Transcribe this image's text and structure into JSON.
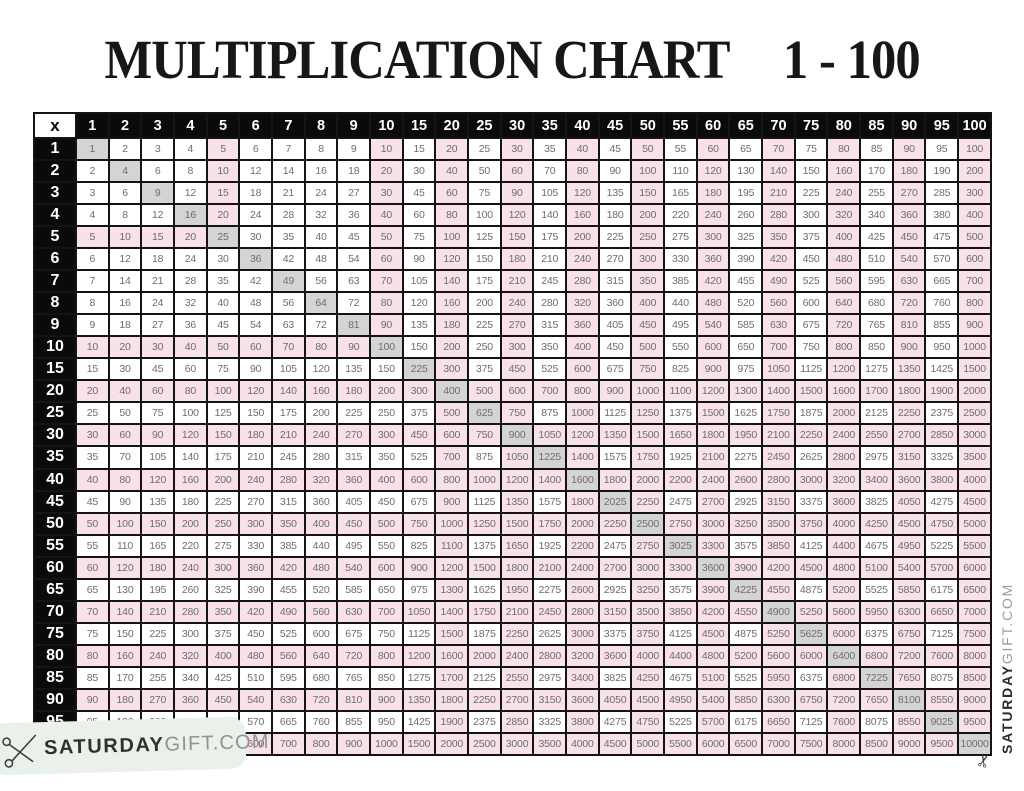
{
  "title": {
    "main": "MULTIPLICATION CHART",
    "range": "1 - 100"
  },
  "table": {
    "corner_label": "x",
    "headers": [
      1,
      2,
      3,
      4,
      5,
      6,
      7,
      8,
      9,
      10,
      15,
      20,
      25,
      30,
      35,
      40,
      45,
      50,
      55,
      60,
      65,
      70,
      75,
      80,
      85,
      90,
      95,
      100
    ],
    "rows": [
      {
        "header": 1,
        "cells": [
          1,
          2,
          3,
          4,
          5,
          6,
          7,
          8,
          9,
          10,
          15,
          20,
          25,
          30,
          35,
          40,
          45,
          50,
          55,
          60,
          65,
          70,
          75,
          80,
          85,
          90,
          95,
          100
        ]
      },
      {
        "header": 2,
        "cells": [
          2,
          4,
          6,
          8,
          10,
          12,
          14,
          16,
          18,
          20,
          30,
          40,
          50,
          60,
          70,
          80,
          90,
          100,
          110,
          120,
          130,
          140,
          150,
          160,
          170,
          180,
          190,
          200
        ]
      },
      {
        "header": 3,
        "cells": [
          3,
          6,
          9,
          12,
          15,
          18,
          21,
          24,
          27,
          30,
          45,
          60,
          75,
          90,
          105,
          120,
          135,
          150,
          165,
          180,
          195,
          210,
          225,
          240,
          255,
          270,
          285,
          300
        ]
      },
      {
        "header": 4,
        "cells": [
          4,
          8,
          12,
          16,
          20,
          24,
          28,
          32,
          36,
          40,
          60,
          80,
          100,
          120,
          140,
          160,
          180,
          200,
          220,
          240,
          260,
          280,
          300,
          320,
          340,
          360,
          380,
          400
        ]
      },
      {
        "header": 5,
        "cells": [
          5,
          10,
          15,
          20,
          25,
          30,
          35,
          40,
          45,
          50,
          75,
          100,
          125,
          150,
          175,
          200,
          225,
          250,
          275,
          300,
          325,
          350,
          375,
          400,
          425,
          450,
          475,
          500
        ]
      },
      {
        "header": 6,
        "cells": [
          6,
          12,
          18,
          24,
          30,
          36,
          42,
          48,
          54,
          60,
          90,
          120,
          150,
          180,
          210,
          240,
          270,
          300,
          330,
          360,
          390,
          420,
          450,
          480,
          510,
          540,
          570,
          600
        ]
      },
      {
        "header": 7,
        "cells": [
          7,
          14,
          21,
          28,
          35,
          42,
          49,
          56,
          63,
          70,
          105,
          140,
          175,
          210,
          245,
          280,
          315,
          350,
          385,
          420,
          455,
          490,
          525,
          560,
          595,
          630,
          665,
          700
        ]
      },
      {
        "header": 8,
        "cells": [
          8,
          16,
          24,
          32,
          40,
          48,
          56,
          64,
          72,
          80,
          120,
          160,
          200,
          240,
          280,
          320,
          360,
          400,
          440,
          480,
          520,
          560,
          600,
          640,
          680,
          720,
          760,
          800
        ]
      },
      {
        "header": 9,
        "cells": [
          9,
          18,
          27,
          36,
          45,
          54,
          63,
          72,
          81,
          90,
          135,
          180,
          225,
          270,
          315,
          360,
          405,
          450,
          495,
          540,
          585,
          630,
          675,
          720,
          765,
          810,
          855,
          900
        ]
      },
      {
        "header": 10,
        "cells": [
          10,
          20,
          30,
          40,
          50,
          60,
          70,
          80,
          90,
          100,
          150,
          200,
          250,
          300,
          350,
          400,
          450,
          500,
          550,
          600,
          650,
          700,
          750,
          800,
          850,
          900,
          950,
          1000
        ]
      },
      {
        "header": 15,
        "cells": [
          15,
          30,
          45,
          60,
          75,
          90,
          105,
          120,
          135,
          150,
          225,
          300,
          375,
          450,
          525,
          600,
          675,
          750,
          825,
          900,
          975,
          1050,
          1125,
          1200,
          1275,
          1350,
          1425,
          1500
        ]
      },
      {
        "header": 20,
        "cells": [
          20,
          40,
          60,
          80,
          100,
          120,
          140,
          160,
          180,
          200,
          300,
          400,
          500,
          600,
          700,
          800,
          900,
          1000,
          1100,
          1200,
          1300,
          1400,
          1500,
          1600,
          1700,
          1800,
          1900,
          2000
        ]
      },
      {
        "header": 25,
        "cells": [
          25,
          50,
          75,
          100,
          125,
          150,
          175,
          200,
          225,
          250,
          375,
          500,
          625,
          750,
          875,
          1000,
          1125,
          1250,
          1375,
          1500,
          1625,
          1750,
          1875,
          2000,
          2125,
          2250,
          2375,
          2500
        ]
      },
      {
        "header": 30,
        "cells": [
          30,
          60,
          90,
          120,
          150,
          180,
          210,
          240,
          270,
          300,
          450,
          600,
          750,
          900,
          1050,
          1200,
          1350,
          1500,
          1650,
          1800,
          1950,
          2100,
          2250,
          2400,
          2550,
          2700,
          2850,
          3000
        ]
      },
      {
        "header": 35,
        "cells": [
          35,
          70,
          105,
          140,
          175,
          210,
          245,
          280,
          315,
          350,
          525,
          700,
          875,
          1050,
          1225,
          1400,
          1575,
          1750,
          1925,
          2100,
          2275,
          2450,
          2625,
          2800,
          2975,
          3150,
          3325,
          3500
        ]
      },
      {
        "header": 40,
        "cells": [
          40,
          80,
          120,
          160,
          200,
          240,
          280,
          320,
          360,
          400,
          600,
          800,
          1000,
          1200,
          1400,
          1600,
          1800,
          2000,
          2200,
          2400,
          2600,
          2800,
          3000,
          3200,
          3400,
          3600,
          3800,
          4000
        ]
      },
      {
        "header": 45,
        "cells": [
          45,
          90,
          135,
          180,
          225,
          270,
          315,
          360,
          405,
          450,
          675,
          900,
          1125,
          1350,
          1575,
          1800,
          2025,
          2250,
          2475,
          2700,
          2925,
          3150,
          3375,
          3600,
          3825,
          4050,
          4275,
          4500
        ]
      },
      {
        "header": 50,
        "cells": [
          50,
          100,
          150,
          200,
          250,
          300,
          350,
          400,
          450,
          500,
          750,
          1000,
          1250,
          1500,
          1750,
          2000,
          2250,
          2500,
          2750,
          3000,
          3250,
          3500,
          3750,
          4000,
          4250,
          4500,
          4750,
          5000
        ]
      },
      {
        "header": 55,
        "cells": [
          55,
          110,
          165,
          220,
          275,
          330,
          385,
          440,
          495,
          550,
          825,
          1100,
          1375,
          1650,
          1925,
          2200,
          2475,
          2750,
          3025,
          3300,
          3575,
          3850,
          4125,
          4400,
          4675,
          4950,
          5225,
          5500
        ]
      },
      {
        "header": 60,
        "cells": [
          60,
          120,
          180,
          240,
          300,
          360,
          420,
          480,
          540,
          600,
          900,
          1200,
          1500,
          1800,
          2100,
          2400,
          2700,
          3000,
          3300,
          3600,
          3900,
          4200,
          4500,
          4800,
          5100,
          5400,
          5700,
          6000
        ]
      },
      {
        "header": 65,
        "cells": [
          65,
          130,
          195,
          260,
          325,
          390,
          455,
          520,
          585,
          650,
          975,
          1300,
          1625,
          1950,
          2275,
          2600,
          2925,
          3250,
          3575,
          3900,
          4225,
          4550,
          4875,
          5200,
          5525,
          5850,
          6175,
          6500
        ]
      },
      {
        "header": 70,
        "cells": [
          70,
          140,
          210,
          280,
          350,
          420,
          490,
          560,
          630,
          700,
          1050,
          1400,
          1750,
          2100,
          2450,
          2800,
          3150,
          3500,
          3850,
          4200,
          4550,
          4900,
          5250,
          5600,
          5950,
          6300,
          6650,
          7000
        ]
      },
      {
        "header": 75,
        "cells": [
          75,
          150,
          225,
          300,
          375,
          450,
          525,
          600,
          675,
          750,
          1125,
          1500,
          1875,
          2250,
          2625,
          3000,
          3375,
          3750,
          4125,
          4500,
          4875,
          5250,
          5625,
          6000,
          6375,
          6750,
          7125,
          7500
        ]
      },
      {
        "header": 80,
        "cells": [
          80,
          160,
          240,
          320,
          400,
          480,
          560,
          640,
          720,
          800,
          1200,
          1600,
          2000,
          2400,
          2800,
          3200,
          3600,
          4000,
          4400,
          4800,
          5200,
          5600,
          6000,
          6400,
          6800,
          7200,
          7600,
          8000
        ]
      },
      {
        "header": 85,
        "cells": [
          85,
          170,
          255,
          340,
          425,
          510,
          595,
          680,
          765,
          850,
          1275,
          1700,
          2125,
          2550,
          2975,
          3400,
          3825,
          4250,
          4675,
          5100,
          5525,
          5950,
          6375,
          6800,
          7225,
          7650,
          8075,
          8500
        ]
      },
      {
        "header": 90,
        "cells": [
          90,
          180,
          270,
          360,
          450,
          540,
          630,
          720,
          810,
          900,
          1350,
          1800,
          2250,
          2700,
          3150,
          3600,
          4050,
          4500,
          4950,
          5400,
          5850,
          6300,
          6750,
          7200,
          7650,
          8100,
          8550,
          9000
        ]
      },
      {
        "header": 95,
        "cells": [
          95,
          190,
          285,
          380,
          475,
          570,
          665,
          760,
          855,
          950,
          1425,
          1900,
          2375,
          2850,
          3325,
          3800,
          4275,
          4750,
          5225,
          5700,
          6175,
          6650,
          7125,
          7600,
          8075,
          8550,
          9025,
          9500
        ]
      },
      {
        "header": 100,
        "cells": [
          100,
          200,
          300,
          400,
          500,
          600,
          700,
          800,
          900,
          1000,
          1500,
          2000,
          2500,
          3000,
          3500,
          4000,
          4500,
          5000,
          5500,
          6000,
          6500,
          7000,
          7500,
          8000,
          8500,
          9000,
          9500,
          10000
        ]
      }
    ]
  },
  "highlight": {
    "full_cross_values": [
      20,
      30,
      40,
      50,
      60,
      70,
      80,
      90,
      100
    ],
    "limited_crosses": [
      {
        "value": 5,
        "within": 5
      },
      {
        "value": 10,
        "within": 10
      }
    ]
  },
  "branding": {
    "name_bold": "SATURDAY",
    "name_light": "GIFT.COM",
    "scissors_glyph": "✂"
  },
  "colors": {
    "pink_highlight": "#f8e1e7",
    "diagonal_gray": "#d4d4d4",
    "header_bg": "#0a0a0a",
    "header_text": "#ffffff",
    "cell_text": "#6d6d6d",
    "badge_bg": "#e9f1ea",
    "title_text": "#171717"
  }
}
